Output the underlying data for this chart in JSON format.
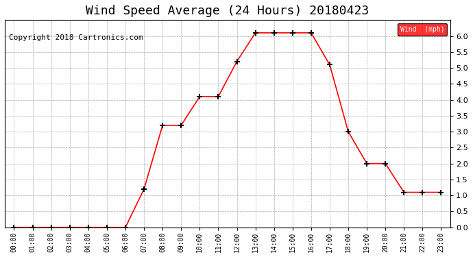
{
  "title": "Wind Speed Average (24 Hours) 20180423",
  "copyright_text": "Copyright 2018 Cartronics.com",
  "legend_label": "Wind  (mph)",
  "x_labels": [
    "00:00",
    "01:00",
    "02:00",
    "03:00",
    "04:00",
    "05:00",
    "06:00",
    "07:00",
    "08:00",
    "09:00",
    "10:00",
    "11:00",
    "12:00",
    "13:00",
    "14:00",
    "15:00",
    "16:00",
    "17:00",
    "18:00",
    "19:00",
    "20:00",
    "21:00",
    "22:00",
    "23:00"
  ],
  "y_values": [
    0.0,
    0.0,
    0.0,
    0.0,
    0.0,
    0.0,
    0.0,
    1.2,
    3.2,
    3.2,
    4.1,
    4.1,
    5.2,
    6.1,
    6.1,
    6.1,
    6.1,
    5.1,
    3.0,
    2.0,
    2.0,
    1.1,
    1.1,
    1.1
  ],
  "ylim": [
    0.0,
    6.5
  ],
  "yticks": [
    0.0,
    0.5,
    1.0,
    1.5,
    2.0,
    2.5,
    3.0,
    3.5,
    4.0,
    4.5,
    5.0,
    5.5,
    6.0
  ],
  "line_color": "red",
  "marker_color": "black",
  "bg_color": "#ffffff",
  "grid_color": "#aaaaaa",
  "title_fontsize": 13,
  "copyright_fontsize": 8,
  "legend_bg": "red",
  "legend_text_color": "white"
}
